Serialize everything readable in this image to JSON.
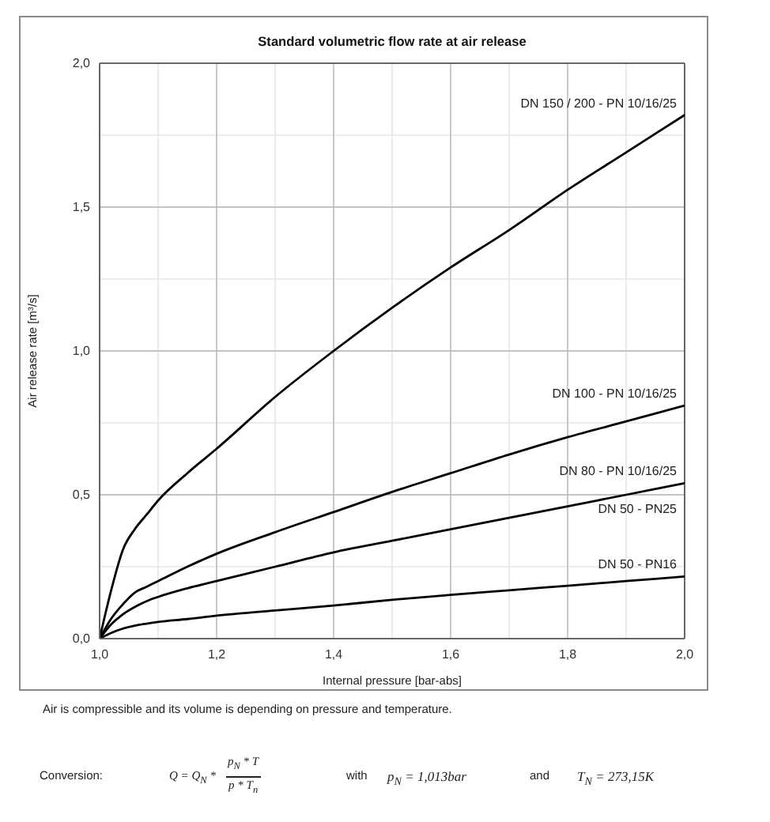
{
  "chart_data": {
    "type": "line",
    "title": "Standard volumetric flow rate at air release",
    "xlabel": "Internal pressure [bar-abs]",
    "ylabel": "Air release rate [m³/s]",
    "x": [
      1.0,
      1.02,
      1.04,
      1.06,
      1.08,
      1.1,
      1.15,
      1.2,
      1.3,
      1.4,
      1.5,
      1.6,
      1.7,
      1.8,
      1.9,
      2.0
    ],
    "series": [
      {
        "name": "DN 150 / 200 - PN 10/16/25",
        "color": "#000000",
        "values": [
          0,
          0.17,
          0.31,
          0.38,
          0.43,
          0.48,
          0.575,
          0.66,
          0.84,
          1.0,
          1.15,
          1.29,
          1.42,
          1.56,
          1.69,
          1.82
        ]
      },
      {
        "name": "DN 100 - PN 10/16/25",
        "color": "#000000",
        "values": [
          0,
          0.07,
          0.12,
          0.16,
          0.18,
          0.2,
          0.25,
          0.295,
          0.37,
          0.44,
          0.51,
          0.575,
          0.64,
          0.7,
          0.755,
          0.81
        ]
      },
      {
        "name": "DN 80 - PN 10/16/25",
        "color": "#000000",
        "values": [
          0,
          0.05,
          0.085,
          0.11,
          0.13,
          0.145,
          0.175,
          0.2,
          0.25,
          0.3,
          0.34,
          0.38,
          0.42,
          0.46,
          0.5,
          0.54
        ]
      },
      {
        "name": "DN 50 - PN16",
        "color": "#000000",
        "values": [
          0,
          0.02,
          0.035,
          0.045,
          0.052,
          0.058,
          0.068,
          0.08,
          0.098,
          0.115,
          0.135,
          0.152,
          0.168,
          0.184,
          0.2,
          0.216
        ]
      }
    ],
    "xlim": [
      1.0,
      2.0
    ],
    "xticks": [
      {
        "value": 1.0,
        "label": "1,0"
      },
      {
        "value": 1.1,
        "label": null
      },
      {
        "value": 1.2,
        "label": "1,2"
      },
      {
        "value": 1.3,
        "label": null
      },
      {
        "value": 1.4,
        "label": "1,4"
      },
      {
        "value": 1.5,
        "label": null
      },
      {
        "value": 1.6,
        "label": "1,6"
      },
      {
        "value": 1.7,
        "label": null
      },
      {
        "value": 1.8,
        "label": "1,8"
      },
      {
        "value": 1.9,
        "label": null
      },
      {
        "value": 2.0,
        "label": "2,0"
      }
    ],
    "ylim": [
      0,
      2.0
    ],
    "yticks": [
      {
        "value": 0,
        "label": "0,0"
      },
      {
        "value": 0.25,
        "label": null
      },
      {
        "value": 0.5,
        "label": "0,5"
      },
      {
        "value": 0.75,
        "label": null
      },
      {
        "value": 1.0,
        "label": "1,0"
      },
      {
        "value": 1.25,
        "label": null
      },
      {
        "value": 1.5,
        "label": "1,5"
      },
      {
        "value": 1.75,
        "label": null
      },
      {
        "value": 2.0,
        "label": "2,0"
      }
    ],
    "grid": true,
    "annotations": [
      {
        "text": "DN 50 - PN25",
        "x": 2.0,
        "y": 0.54
      },
      "Air is compressible and its volume is depending on pressure and temperature.",
      "Conversion:",
      "Q = Q$_{N}$ *",
      "p$_{N}$ * T",
      "p * T$_{n}$",
      "with",
      "p$_{N}$ = 1,013bar",
      "and",
      "T$_{N}$ = 273,15K"
    ]
  }
}
